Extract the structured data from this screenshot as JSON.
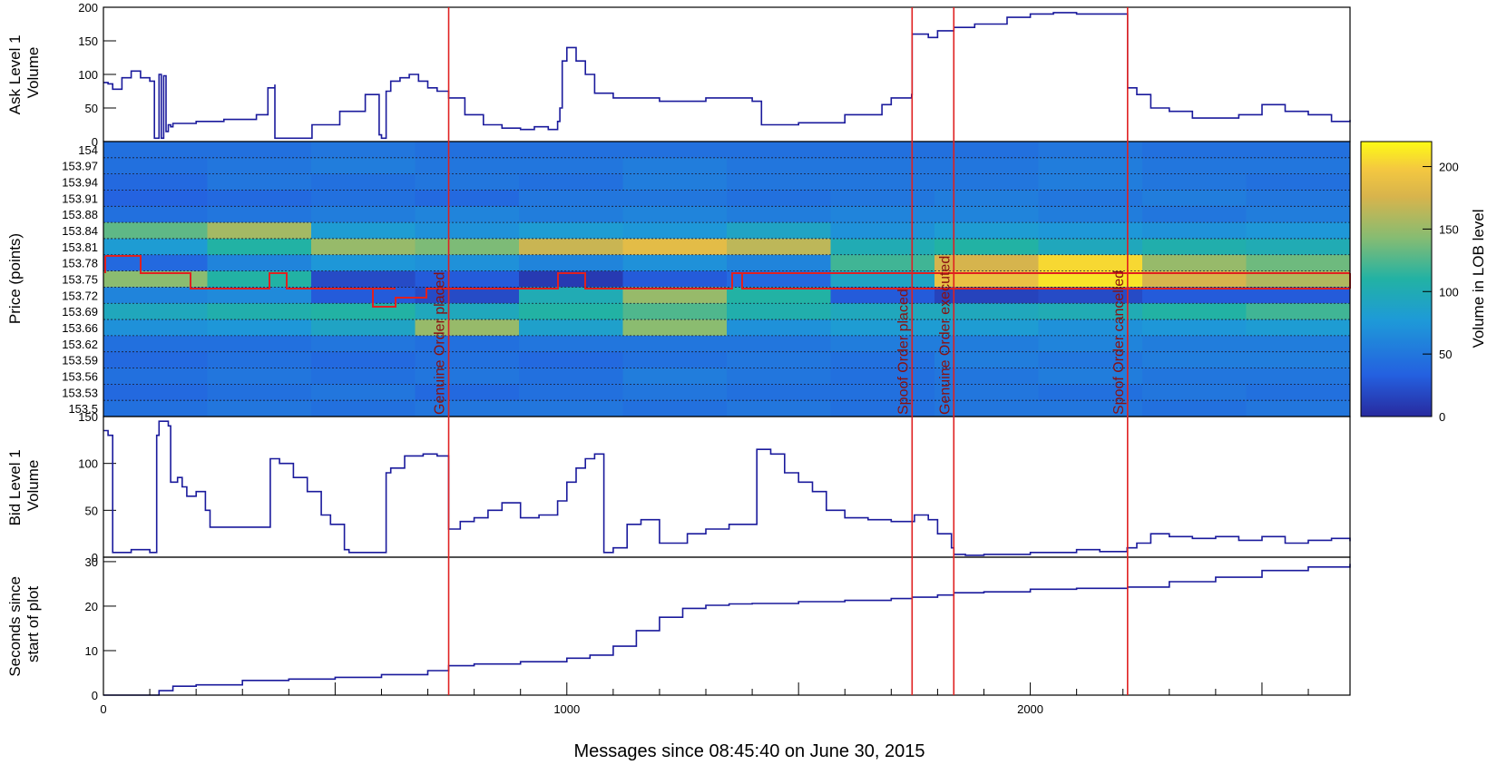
{
  "colors": {
    "trace": "#1a1a9c",
    "event": "#e02020",
    "event_label": "#8a1010",
    "frame": "#000000",
    "grid": "#1a1a2e"
  },
  "xlabel": "Messages since 08:45:40 on June 30, 2015",
  "x_ticks": [
    "0",
    "1000",
    "2000"
  ],
  "colorbar": {
    "label": "Volume in LOB level",
    "ticks": [
      "0",
      "50",
      "100",
      "150",
      "200"
    ],
    "range": [
      0,
      220
    ]
  },
  "events": [
    {
      "x": 745,
      "label": "Genuine Order placed"
    },
    {
      "x": 1745,
      "label": "Spoof Order placed"
    },
    {
      "x": 1835,
      "label": "Genuine Order executed"
    },
    {
      "x": 2210,
      "label": "Spoof Order cancelled"
    }
  ],
  "chart_data": [
    {
      "type": "line",
      "title": "",
      "ylabel": "Ask Level 1\nVolume",
      "xlim": [
        0,
        2690
      ],
      "ylim": [
        0,
        200
      ],
      "y_ticks": [
        "0",
        "50",
        "100",
        "150",
        "200"
      ],
      "series": [
        {
          "x": [
            0,
            10,
            20,
            40,
            60,
            80,
            100,
            110,
            120,
            125,
            130,
            135,
            140,
            145,
            150,
            200,
            260,
            330,
            355,
            370,
            370,
            450,
            510,
            565,
            595,
            600,
            610,
            620,
            640,
            660,
            680,
            700,
            720,
            745,
            780,
            820,
            860,
            900,
            930,
            960,
            980,
            985,
            990,
            1000,
            1020,
            1040,
            1060,
            1100,
            1200,
            1300,
            1400,
            1420,
            1500,
            1600,
            1680,
            1700,
            1744,
            1745,
            1780,
            1800,
            1835,
            1880,
            1950,
            2000,
            2050,
            2100,
            2150,
            2209,
            2210,
            2230,
            2260,
            2300,
            2350,
            2400,
            2450,
            2500,
            2550,
            2600,
            2650,
            2690
          ],
          "y": [
            88,
            86,
            78,
            95,
            105,
            95,
            90,
            5,
            100,
            5,
            98,
            15,
            25,
            22,
            27,
            30,
            33,
            40,
            80,
            85,
            5,
            25,
            45,
            70,
            10,
            5,
            75,
            90,
            95,
            100,
            90,
            80,
            75,
            65,
            40,
            25,
            20,
            18,
            22,
            18,
            30,
            50,
            120,
            140,
            120,
            100,
            72,
            65,
            60,
            65,
            60,
            25,
            28,
            40,
            55,
            65,
            70,
            160,
            155,
            165,
            170,
            175,
            185,
            190,
            192,
            190,
            190,
            190,
            80,
            70,
            50,
            45,
            35,
            35,
            40,
            55,
            45,
            40,
            30,
            32
          ]
        }
      ]
    },
    {
      "type": "heatmap",
      "title": "",
      "ylabel": "Price (points)",
      "xlim": [
        0,
        2690
      ],
      "levels": [
        "154",
        "153.97",
        "153.94",
        "153.91",
        "153.88",
        "153.84",
        "153.81",
        "153.78",
        "153.75",
        "153.72",
        "153.69",
        "153.66",
        "153.62",
        "153.59",
        "153.56",
        "153.53",
        "153.5"
      ],
      "values": [
        [
          45,
          45,
          50,
          45,
          45,
          45,
          45,
          45,
          45,
          50,
          45,
          45
        ],
        [
          45,
          50,
          55,
          50,
          50,
          55,
          50,
          50,
          50,
          55,
          50,
          50
        ],
        [
          40,
          50,
          45,
          50,
          45,
          55,
          50,
          50,
          50,
          55,
          50,
          45
        ],
        [
          35,
          40,
          45,
          40,
          50,
          50,
          45,
          50,
          55,
          50,
          55,
          50
        ],
        [
          45,
          50,
          55,
          60,
          55,
          60,
          55,
          60,
          60,
          55,
          50,
          55
        ],
        [
          130,
          155,
          80,
          70,
          80,
          75,
          90,
          70,
          80,
          75,
          70,
          75
        ],
        [
          80,
          110,
          150,
          140,
          170,
          185,
          165,
          100,
          110,
          95,
          105,
          100
        ],
        [
          40,
          60,
          75,
          70,
          60,
          70,
          60,
          120,
          175,
          205,
          150,
          135
        ],
        [
          145,
          110,
          20,
          30,
          10,
          30,
          40,
          90,
          190,
          210,
          175,
          160
        ],
        [
          60,
          65,
          30,
          20,
          100,
          150,
          110,
          30,
          15,
          20,
          30,
          30
        ],
        [
          95,
          105,
          110,
          95,
          110,
          125,
          105,
          95,
          95,
          100,
          110,
          120
        ],
        [
          70,
          75,
          90,
          150,
          85,
          145,
          70,
          80,
          80,
          70,
          75,
          80
        ],
        [
          45,
          45,
          50,
          45,
          50,
          50,
          50,
          55,
          55,
          60,
          55,
          55
        ],
        [
          40,
          45,
          40,
          45,
          40,
          45,
          50,
          45,
          55,
          50,
          55,
          55
        ],
        [
          45,
          50,
          45,
          50,
          45,
          55,
          50,
          45,
          50,
          55,
          50,
          50
        ],
        [
          40,
          45,
          50,
          40,
          45,
          50,
          45,
          45,
          50,
          45,
          50,
          45
        ],
        [
          45,
          50,
          45,
          50,
          50,
          45,
          50,
          45,
          50,
          50,
          45,
          50
        ]
      ]
    },
    {
      "type": "line",
      "title": "",
      "ylabel": "Bid Level 1\nVolume",
      "xlim": [
        0,
        2690
      ],
      "ylim": [
        0,
        150
      ],
      "y_ticks": [
        "0",
        "50",
        "100",
        "150"
      ],
      "series": [
        {
          "x": [
            0,
            10,
            20,
            60,
            100,
            110,
            115,
            120,
            140,
            145,
            160,
            170,
            180,
            200,
            220,
            230,
            355,
            360,
            380,
            410,
            440,
            470,
            490,
            520,
            530,
            600,
            610,
            620,
            650,
            690,
            700,
            720,
            745,
            770,
            800,
            830,
            860,
            900,
            940,
            980,
            1000,
            1020,
            1040,
            1060,
            1080,
            1100,
            1130,
            1160,
            1200,
            1260,
            1300,
            1350,
            1400,
            1410,
            1440,
            1470,
            1500,
            1530,
            1560,
            1600,
            1650,
            1700,
            1744,
            1750,
            1780,
            1800,
            1830,
            1835,
            1860,
            1900,
            2000,
            2050,
            2100,
            2150,
            2209,
            2210,
            2230,
            2260,
            2300,
            2350,
            2400,
            2450,
            2500,
            2550,
            2600,
            2650,
            2690
          ],
          "y": [
            135,
            130,
            5,
            8,
            5,
            5,
            130,
            145,
            140,
            80,
            85,
            75,
            65,
            70,
            50,
            32,
            32,
            105,
            100,
            85,
            70,
            45,
            35,
            8,
            5,
            5,
            90,
            95,
            108,
            110,
            110,
            108,
            30,
            38,
            42,
            50,
            58,
            42,
            45,
            60,
            80,
            95,
            105,
            110,
            5,
            10,
            35,
            40,
            15,
            25,
            30,
            35,
            35,
            115,
            110,
            90,
            80,
            70,
            50,
            42,
            40,
            38,
            38,
            45,
            40,
            25,
            10,
            3,
            2,
            3,
            5,
            5,
            8,
            6,
            10,
            10,
            15,
            25,
            22,
            20,
            22,
            18,
            22,
            15,
            18,
            20,
            17
          ]
        }
      ]
    },
    {
      "type": "line",
      "title": "",
      "ylabel": "Seconds since\nstart of plot",
      "xlim": [
        0,
        2690
      ],
      "ylim": [
        0,
        31
      ],
      "y_ticks": [
        "0",
        "10",
        "20",
        "30"
      ],
      "series": [
        {
          "x": [
            0,
            60,
            120,
            150,
            200,
            300,
            400,
            500,
            600,
            700,
            745,
            800,
            900,
            1000,
            1050,
            1100,
            1150,
            1200,
            1250,
            1300,
            1350,
            1400,
            1500,
            1600,
            1700,
            1745,
            1800,
            1835,
            1900,
            2000,
            2100,
            2210,
            2300,
            2400,
            2500,
            2600,
            2690
          ],
          "y": [
            0,
            0,
            1,
            2,
            2.3,
            3.3,
            3.6,
            4,
            4.6,
            5.5,
            6.6,
            7,
            7.5,
            8.3,
            9,
            11,
            14.5,
            17.5,
            19.5,
            20.2,
            20.5,
            20.6,
            21,
            21.3,
            21.7,
            22,
            22.5,
            23,
            23.2,
            23.8,
            24,
            24.3,
            25.5,
            26.5,
            28,
            28.8,
            29.5
          ]
        }
      ]
    }
  ]
}
